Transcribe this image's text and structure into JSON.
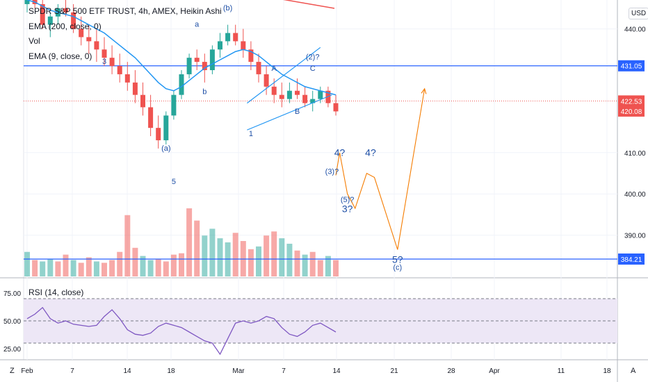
{
  "legend": {
    "symbol": "SPDR S&P 500 ETF TRUST, 4h, AMEX, Heikin Ashi",
    "ema200": "EMA (200, close, 0)",
    "vol": "Vol",
    "ema9": "EMA (9, close, 0)"
  },
  "rsi_label": "RSI (14, close)",
  "currency": "USD",
  "corner_left": "Z",
  "corner_right": "A",
  "colors": {
    "up": "#26a69a",
    "down": "#ef5350",
    "ema": "#2196f3",
    "hline": "#2962ff",
    "projection": "#f57c00",
    "rsi": "#7e57c2",
    "rsi_band": "#ede7f6"
  },
  "chart_data": [
    {
      "type": "candlestick",
      "title": "SPDR S&P 500 ETF TRUST, 4h, AMEX, Heikin Ashi",
      "ylim": [
        380,
        447
      ],
      "y_ticks": [
        440,
        410,
        400,
        390
      ],
      "price_labels": [
        {
          "value": 431.05,
          "text": "431.05",
          "color": "#2962ff"
        },
        {
          "value": 422.53,
          "text": "422.53",
          "color": "#ef5350"
        },
        {
          "value": 420.08,
          "text": "420.08",
          "color": "#ef5350"
        },
        {
          "value": 384.21,
          "text": "384.21",
          "color": "#2962ff"
        }
      ],
      "x_ticks": [
        "Feb",
        "7",
        "14",
        "18",
        "Mar",
        "7",
        "14",
        "21",
        "28",
        "Apr",
        "11",
        "18"
      ],
      "horizontal_lines": [
        431.05,
        384.21
      ],
      "current_price_line": 422.53,
      "candles": [
        [
          446,
          449,
          444,
          447
        ],
        [
          447,
          449,
          445,
          446
        ],
        [
          446,
          448,
          440,
          441
        ],
        [
          441,
          444,
          438,
          443
        ],
        [
          443,
          446,
          441,
          445
        ],
        [
          445,
          447,
          443,
          444
        ],
        [
          444,
          446,
          439,
          440
        ],
        [
          440,
          443,
          436,
          438
        ],
        [
          438,
          441,
          434,
          437
        ],
        [
          437,
          440,
          432,
          435
        ],
        [
          435,
          438,
          431,
          433
        ],
        [
          433,
          436,
          429,
          431
        ],
        [
          431,
          434,
          427,
          429
        ],
        [
          429,
          432,
          425,
          427
        ],
        [
          427,
          430,
          422,
          424
        ],
        [
          424,
          427,
          419,
          421
        ],
        [
          421,
          424,
          414,
          416
        ],
        [
          416,
          419,
          411,
          413
        ],
        [
          413,
          420,
          412,
          419
        ],
        [
          419,
          425,
          418,
          424
        ],
        [
          424,
          430,
          423,
          429
        ],
        [
          429,
          434,
          428,
          433
        ],
        [
          433,
          435,
          430,
          432
        ],
        [
          432,
          434,
          427,
          430
        ],
        [
          430,
          436,
          429,
          435
        ],
        [
          435,
          439,
          433,
          437
        ],
        [
          437,
          441,
          436,
          439
        ],
        [
          439,
          441,
          436,
          437
        ],
        [
          437,
          440,
          433,
          435
        ],
        [
          435,
          437,
          430,
          432
        ],
        [
          432,
          434,
          427,
          429
        ],
        [
          429,
          431,
          424,
          426
        ],
        [
          426,
          428,
          422,
          424
        ],
        [
          424,
          427,
          421,
          423
        ],
        [
          423,
          427,
          422,
          425
        ],
        [
          425,
          428,
          423,
          424
        ],
        [
          424,
          426,
          421,
          422
        ],
        [
          422,
          425,
          420,
          423
        ],
        [
          423,
          426,
          422,
          425
        ],
        [
          425,
          426,
          421,
          422
        ],
        [
          422,
          424,
          419,
          420
        ]
      ],
      "ema_line": [
        447,
        446.5,
        445.5,
        444.5,
        444,
        443.5,
        443,
        442,
        441,
        440,
        439,
        437.5,
        436,
        434.5,
        433,
        431,
        429,
        427,
        425.5,
        425,
        426,
        427.5,
        429,
        430.5,
        431.5,
        432.5,
        433.5,
        434.5,
        435,
        434.5,
        433.5,
        432,
        430.5,
        429,
        428,
        427,
        426,
        425.5,
        425,
        424.5,
        424
      ],
      "volume": [
        {
          "v": 1.8,
          "dir": "up"
        },
        {
          "v": 1.2,
          "dir": "down"
        },
        {
          "v": 1.1,
          "dir": "up"
        },
        {
          "v": 1.3,
          "dir": "up"
        },
        {
          "v": 1.1,
          "dir": "down"
        },
        {
          "v": 1.6,
          "dir": "down"
        },
        {
          "v": 1.2,
          "dir": "up"
        },
        {
          "v": 1.0,
          "dir": "down"
        },
        {
          "v": 1.4,
          "dir": "down"
        },
        {
          "v": 1.1,
          "dir": "up"
        },
        {
          "v": 1.0,
          "dir": "down"
        },
        {
          "v": 1.2,
          "dir": "down"
        },
        {
          "v": 1.8,
          "dir": "down"
        },
        {
          "v": 4.5,
          "dir": "down"
        },
        {
          "v": 2.1,
          "dir": "down"
        },
        {
          "v": 1.5,
          "dir": "up"
        },
        {
          "v": 1.2,
          "dir": "up"
        },
        {
          "v": 1.3,
          "dir": "down"
        },
        {
          "v": 1.1,
          "dir": "down"
        },
        {
          "v": 1.6,
          "dir": "down"
        },
        {
          "v": 1.7,
          "dir": "down"
        },
        {
          "v": 5.0,
          "dir": "down"
        },
        {
          "v": 4.1,
          "dir": "down"
        },
        {
          "v": 3.0,
          "dir": "up"
        },
        {
          "v": 3.5,
          "dir": "up"
        },
        {
          "v": 2.8,
          "dir": "up"
        },
        {
          "v": 2.5,
          "dir": "up"
        },
        {
          "v": 3.2,
          "dir": "down"
        },
        {
          "v": 2.6,
          "dir": "down"
        },
        {
          "v": 2.0,
          "dir": "down"
        },
        {
          "v": 2.2,
          "dir": "up"
        },
        {
          "v": 3.0,
          "dir": "down"
        },
        {
          "v": 3.3,
          "dir": "down"
        },
        {
          "v": 2.8,
          "dir": "up"
        },
        {
          "v": 2.4,
          "dir": "up"
        },
        {
          "v": 1.9,
          "dir": "down"
        },
        {
          "v": 1.6,
          "dir": "up"
        },
        {
          "v": 1.8,
          "dir": "down"
        },
        {
          "v": 1.2,
          "dir": "down"
        },
        {
          "v": 1.5,
          "dir": "up"
        },
        {
          "v": 1.2,
          "dir": "down"
        }
      ],
      "wave_labels": [
        {
          "text": "3",
          "i": 10,
          "price": 431.5
        },
        {
          "text": "a",
          "i": 22,
          "price": 440.5
        },
        {
          "text": "(b)",
          "i": 26,
          "price": 444.5
        },
        {
          "text": "b",
          "i": 23,
          "price": 424.2
        },
        {
          "text": "(a)",
          "i": 18,
          "price": 410.5
        },
        {
          "text": "5",
          "i": 19,
          "price": 402.4
        },
        {
          "text": "A",
          "i": 32,
          "price": 429.8
        },
        {
          "text": "(2)?",
          "i": 37,
          "price": 432.6
        },
        {
          "text": "C",
          "i": 37,
          "price": 429.8
        },
        {
          "text": "B",
          "i": 35,
          "price": 419.4
        },
        {
          "text": "1",
          "i": 29,
          "price": 414.0
        },
        {
          "text": "4?",
          "big": true,
          "i": 40.5,
          "price": 409.2
        },
        {
          "text": "(3)?",
          "i": 39.5,
          "price": 404.8
        },
        {
          "text": "(5)?",
          "i": 41.5,
          "price": 398.0
        },
        {
          "text": "3?",
          "big": true,
          "i": 41.5,
          "price": 395.6
        },
        {
          "text": "4?",
          "big": true,
          "i": 44.5,
          "price": 409.2
        },
        {
          "text": "5?",
          "big": true,
          "i": 48,
          "price": 383.3
        },
        {
          "text": "(c)",
          "i": 48,
          "price": 381.6
        }
      ],
      "projection_path": [
        [
          40.0,
          404.5
        ],
        [
          40.5,
          410.0
        ],
        [
          41.5,
          400.0
        ],
        [
          42.5,
          396.5
        ],
        [
          44.0,
          405.0
        ],
        [
          45.0,
          404.0
        ],
        [
          48.0,
          386.5
        ],
        [
          51.5,
          425.5
        ]
      ],
      "channel_lines": [
        [
          [
            28.5,
            422.0
          ],
          [
            38.0,
            435.5
          ]
        ],
        [
          [
            28.5,
            415.5
          ],
          [
            39.5,
            424.0
          ]
        ]
      ]
    },
    {
      "type": "line",
      "title": "RSI (14, close)",
      "ylim": [
        15,
        85
      ],
      "y_ticks": [
        75.0,
        50.0,
        25.0
      ],
      "band": [
        30,
        70
      ],
      "mid": 50,
      "values": [
        52,
        56,
        62,
        52,
        48,
        50,
        47,
        46,
        45,
        46,
        54,
        60,
        52,
        42,
        38,
        37,
        39,
        45,
        48,
        46,
        44,
        40,
        36,
        32,
        30,
        20,
        34,
        48,
        50,
        48,
        50,
        54,
        52,
        44,
        38,
        36,
        40,
        46,
        48,
        44,
        40
      ]
    }
  ]
}
